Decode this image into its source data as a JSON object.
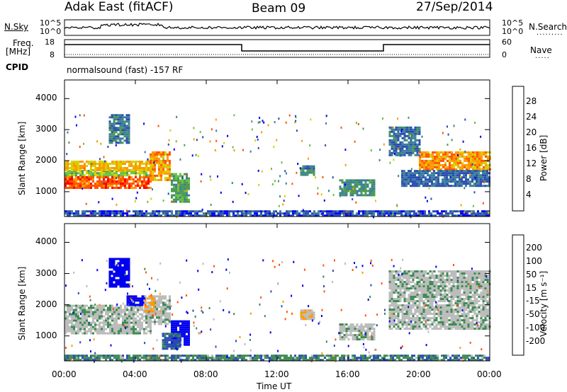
{
  "header": {
    "station": "Adak East (fitACF)",
    "beam": "Beam 09",
    "date": "27/Sep/2014"
  },
  "panels": {
    "nsky_label": "N.Sky",
    "nsky_ticks": [
      "10^5",
      "10^0"
    ],
    "nsearch_label": "N.Search",
    "freq_label_1": "Freq.",
    "freq_label_2": "[MHz]",
    "freq_ticks": [
      "18",
      "8"
    ],
    "nave_ticks": [
      "60",
      "0"
    ],
    "nave_label": "Nave",
    "cpid_label": "CPID",
    "cpid_text": "normalsound (fast) -157 RF"
  },
  "colors": {
    "power_scale": [
      "#0000ee",
      "#2a4cb0",
      "#3a7f9a",
      "#4a9a50",
      "#6ac040",
      "#d8d000",
      "#ff9900",
      "#ff5500",
      "#ff0000"
    ],
    "velocity_scale": [
      "#ee0000",
      "#ff5500",
      "#ff9900",
      "#bbbbbb",
      "#bbbbbb",
      "#6ac040",
      "#3a8a50",
      "#2a4cb0",
      "#0000ee"
    ],
    "ground_scatter": "#bbbbbb"
  },
  "chart_data": [
    {
      "type": "heatmap",
      "name": "power",
      "xlabel": "",
      "ylabel": "Slant Range [km]",
      "x_ticks": [
        "00:00",
        "04:00",
        "08:00",
        "12:00",
        "16:00",
        "20:00",
        "00:00"
      ],
      "y_ticks": [
        1000,
        2000,
        3000,
        4000
      ],
      "ylim": [
        200,
        4600
      ],
      "colorbar_label": "Power [dB]",
      "colorbar_ticks": [
        4,
        8,
        12,
        16,
        20,
        24,
        28
      ],
      "colorbar_range": [
        0,
        32
      ],
      "regions": [
        {
          "t": [
            0.0,
            4.9
          ],
          "r": [
            1100,
            1500
          ],
          "value": 30
        },
        {
          "t": [
            0.0,
            4.9
          ],
          "r": [
            1500,
            1700
          ],
          "value": 18
        },
        {
          "t": [
            0.0,
            4.9
          ],
          "r": [
            1700,
            2000
          ],
          "value": 24
        },
        {
          "t": [
            4.8,
            6.0
          ],
          "r": [
            1400,
            2300
          ],
          "value": 26
        },
        {
          "t": [
            6.0,
            7.0
          ],
          "r": [
            700,
            1600
          ],
          "value": 14
        },
        {
          "t": [
            2.5,
            3.6
          ],
          "r": [
            2600,
            3500
          ],
          "value": 10
        },
        {
          "t": [
            13.3,
            14.1
          ],
          "r": [
            1550,
            1850
          ],
          "value": 10
        },
        {
          "t": [
            15.5,
            17.5
          ],
          "r": [
            900,
            1400
          ],
          "value": 12
        },
        {
          "t": [
            18.3,
            20.0
          ],
          "r": [
            2200,
            3100
          ],
          "value": 9
        },
        {
          "t": [
            20.0,
            24.0
          ],
          "r": [
            1700,
            2300
          ],
          "value": 26
        },
        {
          "t": [
            19.0,
            24.0
          ],
          "r": [
            1200,
            1700
          ],
          "value": 8
        },
        {
          "t": [
            0.0,
            24.0
          ],
          "r": [
            250,
            400
          ],
          "value": 6
        }
      ]
    },
    {
      "type": "heatmap",
      "name": "velocity",
      "xlabel": "Time UT",
      "ylabel": "Slant Range [km]",
      "x_ticks": [
        "00:00",
        "04:00",
        "08:00",
        "12:00",
        "16:00",
        "20:00",
        "00:00"
      ],
      "y_ticks": [
        1000,
        2000,
        3000,
        4000
      ],
      "ylim": [
        200,
        4600
      ],
      "colorbar_label": "Velocity [m s⁻¹]",
      "colorbar_ticks": [
        200,
        100,
        50,
        15,
        -15,
        -50,
        -100,
        -200
      ],
      "regions": [
        {
          "t": [
            0.0,
            4.9
          ],
          "r": [
            1100,
            2000
          ],
          "value": 0
        },
        {
          "t": [
            4.8,
            6.0
          ],
          "r": [
            1400,
            2300
          ],
          "value": 0
        },
        {
          "t": [
            3.5,
            4.5
          ],
          "r": [
            2000,
            2300
          ],
          "value": 220
        },
        {
          "t": [
            4.5,
            5.0
          ],
          "r": [
            1800,
            2300
          ],
          "value": -60
        },
        {
          "t": [
            6.0,
            7.0
          ],
          "r": [
            700,
            1500
          ],
          "value": 220
        },
        {
          "t": [
            5.5,
            6.5
          ],
          "r": [
            600,
            1100
          ],
          "value": 60
        },
        {
          "t": [
            2.5,
            3.6
          ],
          "r": [
            2600,
            3500
          ],
          "value": 150
        },
        {
          "t": [
            13.3,
            14.1
          ],
          "r": [
            1550,
            1850
          ],
          "value": -40
        },
        {
          "t": [
            15.5,
            17.5
          ],
          "r": [
            900,
            1400
          ],
          "value": 0
        },
        {
          "t": [
            18.3,
            24.0
          ],
          "r": [
            1200,
            3100
          ],
          "value": 0
        },
        {
          "t": [
            0.0,
            24.0
          ],
          "r": [
            250,
            400
          ],
          "value": 40
        }
      ]
    }
  ]
}
